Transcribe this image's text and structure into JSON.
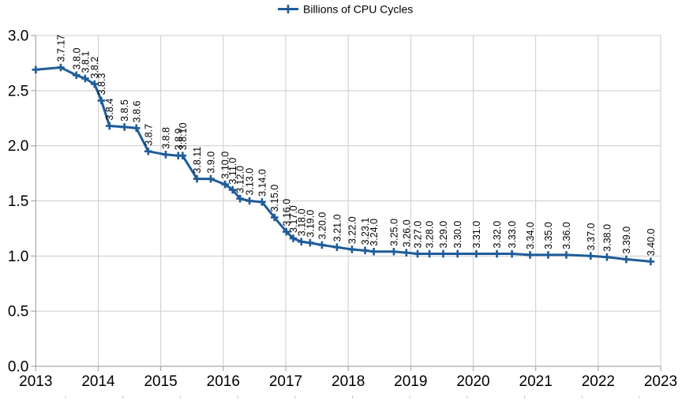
{
  "legend": {
    "label": "Billions of CPU Cycles",
    "position": "top-center"
  },
  "colors": {
    "series": "#1F5C99",
    "gridline": "#cccccc",
    "axis": "#aaaaaa",
    "text": "#000000",
    "background": "#ffffff",
    "artifact_tick": "#c9c9c9"
  },
  "chart_data": {
    "type": "line",
    "title": "",
    "xlabel": "",
    "ylabel": "",
    "grid": true,
    "legend_position": "top-center",
    "x_axis": {
      "min": 2013,
      "max": 2023,
      "tick_step": 1,
      "tick_labels": [
        "2013",
        "2014",
        "2015",
        "2016",
        "2017",
        "2018",
        "2019",
        "2020",
        "2021",
        "2022",
        "2023"
      ]
    },
    "y_axis": {
      "min": 0.0,
      "max": 3.0,
      "tick_step": 0.5,
      "tick_labels": [
        "0.0",
        "0.5",
        "1.0",
        "1.5",
        "2.0",
        "2.5",
        "3.0"
      ]
    },
    "series": [
      {
        "name": "Billions of CPU Cycles",
        "color": "#1F5C99",
        "marker": "plus",
        "points": [
          {
            "label": "",
            "x": 2013.0,
            "y": 2.69
          },
          {
            "label": "3.7.17",
            "x": 2013.4,
            "y": 2.71
          },
          {
            "label": "3.8.0",
            "x": 2013.65,
            "y": 2.64
          },
          {
            "label": "3.8.1",
            "x": 2013.79,
            "y": 2.61
          },
          {
            "label": "3.8.2",
            "x": 2013.94,
            "y": 2.56
          },
          {
            "label": "3.8.3",
            "x": 2014.05,
            "y": 2.41
          },
          {
            "label": "3.8.4",
            "x": 2014.18,
            "y": 2.18
          },
          {
            "label": "3.8.5",
            "x": 2014.42,
            "y": 2.17
          },
          {
            "label": "3.8.6",
            "x": 2014.61,
            "y": 2.16
          },
          {
            "label": "3.8.7",
            "x": 2014.8,
            "y": 1.95
          },
          {
            "label": "3.8.8",
            "x": 2015.08,
            "y": 1.92
          },
          {
            "label": "3.8.9",
            "x": 2015.28,
            "y": 1.91
          },
          {
            "label": "3.8.10",
            "x": 2015.35,
            "y": 1.91
          },
          {
            "label": "3.8.11",
            "x": 2015.58,
            "y": 1.7
          },
          {
            "label": "3.9.0",
            "x": 2015.8,
            "y": 1.7
          },
          {
            "label": "3.10.0",
            "x": 2016.03,
            "y": 1.65
          },
          {
            "label": "3.11.0",
            "x": 2016.15,
            "y": 1.6
          },
          {
            "label": "3.12.0",
            "x": 2016.27,
            "y": 1.52
          },
          {
            "label": "3.13.0",
            "x": 2016.42,
            "y": 1.5
          },
          {
            "label": "3.14.0",
            "x": 2016.62,
            "y": 1.49
          },
          {
            "label": "3.15.0",
            "x": 2016.82,
            "y": 1.35
          },
          {
            "label": "3.16.0",
            "x": 2017.01,
            "y": 1.22
          },
          {
            "label": "3.17.0",
            "x": 2017.12,
            "y": 1.16
          },
          {
            "label": "3.18.0",
            "x": 2017.25,
            "y": 1.13
          },
          {
            "label": "3.19.0",
            "x": 2017.39,
            "y": 1.12
          },
          {
            "label": "3.20.0",
            "x": 2017.58,
            "y": 1.1
          },
          {
            "label": "3.21.0",
            "x": 2017.82,
            "y": 1.08
          },
          {
            "label": "3.22.0",
            "x": 2018.06,
            "y": 1.06
          },
          {
            "label": "3.23.1",
            "x": 2018.27,
            "y": 1.05
          },
          {
            "label": "3.24.0",
            "x": 2018.41,
            "y": 1.04
          },
          {
            "label": "3.25.0",
            "x": 2018.73,
            "y": 1.04
          },
          {
            "label": "3.26.0",
            "x": 2018.93,
            "y": 1.03
          },
          {
            "label": "3.27.0",
            "x": 2019.11,
            "y": 1.02
          },
          {
            "label": "3.28.0",
            "x": 2019.3,
            "y": 1.02
          },
          {
            "label": "3.29.0",
            "x": 2019.52,
            "y": 1.02
          },
          {
            "label": "3.30.0",
            "x": 2019.75,
            "y": 1.02
          },
          {
            "label": "3.31.0",
            "x": 2020.05,
            "y": 1.02
          },
          {
            "label": "3.32.0",
            "x": 2020.38,
            "y": 1.02
          },
          {
            "label": "3.33.0",
            "x": 2020.62,
            "y": 1.02
          },
          {
            "label": "3.34.0",
            "x": 2020.91,
            "y": 1.01
          },
          {
            "label": "3.35.0",
            "x": 2021.2,
            "y": 1.01
          },
          {
            "label": "3.36.0",
            "x": 2021.49,
            "y": 1.01
          },
          {
            "label": "3.37.0",
            "x": 2021.88,
            "y": 1.0
          },
          {
            "label": "3.38.0",
            "x": 2022.14,
            "y": 0.99
          },
          {
            "label": "3.39.0",
            "x": 2022.45,
            "y": 0.97
          },
          {
            "label": "3.40.0",
            "x": 2022.84,
            "y": 0.95
          }
        ]
      }
    ]
  }
}
